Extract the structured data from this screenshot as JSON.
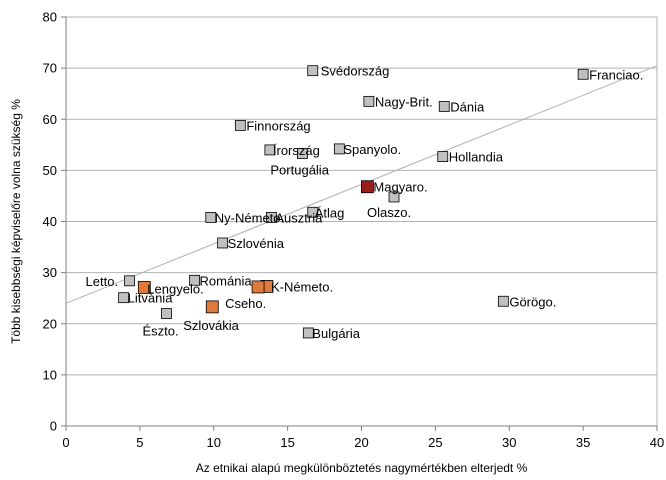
{
  "chart_data": {
    "type": "scatter",
    "xlabel": "Az etnikai alapú megkülönböztetés nagymértékben elterjedt %",
    "ylabel": "Több kisebbségi képviselőre volna szükség %",
    "xlim": [
      0,
      40
    ],
    "ylim": [
      0,
      80
    ],
    "xticks": [
      "0",
      "5",
      "10",
      "15",
      "20",
      "25",
      "30",
      "35",
      "40"
    ],
    "yticks": [
      "0",
      "10",
      "20",
      "30",
      "40",
      "50",
      "60",
      "70",
      "80"
    ],
    "grid": "horizontal",
    "colors": {
      "default": "#c0c0c0",
      "highlight": "#e07a3c",
      "focus": "#9b1c1c",
      "trend": "#b0b0b0"
    },
    "trendline": {
      "x": [
        0,
        40
      ],
      "y": [
        24,
        70.5
      ]
    },
    "points": [
      {
        "label": "Svédország",
        "x": 16.7,
        "y": 69.5,
        "color": "default"
      },
      {
        "label": "Franciao.",
        "x": 35.0,
        "y": 68.8,
        "color": "default"
      },
      {
        "label": "Nagy-Brit.",
        "x": 20.5,
        "y": 63.5,
        "color": "default"
      },
      {
        "label": "Dánia",
        "x": 25.6,
        "y": 62.5,
        "color": "default"
      },
      {
        "label": "Finnország",
        "x": 11.8,
        "y": 58.8,
        "color": "default"
      },
      {
        "label": "Írország",
        "x": 13.8,
        "y": 54.0,
        "color": "default"
      },
      {
        "label": "Spanyolo.",
        "x": 18.5,
        "y": 54.2,
        "color": "default"
      },
      {
        "label": "Portugália",
        "x": 16.0,
        "y": 53.3,
        "color": "default"
      },
      {
        "label": "Hollandia",
        "x": 25.5,
        "y": 52.7,
        "color": "default"
      },
      {
        "label": "Magyaro.",
        "x": 20.4,
        "y": 46.8,
        "color": "focus"
      },
      {
        "label": "Olaszo.",
        "x": 22.2,
        "y": 44.8,
        "color": "default"
      },
      {
        "label": "Átlag",
        "x": 16.7,
        "y": 41.8,
        "color": "default"
      },
      {
        "label": "Ny-Németo.",
        "x": 9.8,
        "y": 40.8,
        "color": "default"
      },
      {
        "label": "Ausztria",
        "x": 13.9,
        "y": 40.8,
        "color": "default"
      },
      {
        "label": "Szlovénia",
        "x": 10.6,
        "y": 35.8,
        "color": "default"
      },
      {
        "label": "Letto.",
        "x": 4.3,
        "y": 28.4,
        "color": "default"
      },
      {
        "label": "Románia",
        "x": 8.7,
        "y": 28.5,
        "color": "default"
      },
      {
        "label": "Lengyelo.",
        "x": 5.3,
        "y": 27.1,
        "color": "highlight"
      },
      {
        "label": "K-Németo.",
        "x": 13.6,
        "y": 27.3,
        "color": "highlight"
      },
      {
        "label": "Cseho.",
        "x": 13.0,
        "y": 27.2,
        "color": "highlight"
      },
      {
        "label": "Litvánia",
        "x": 3.9,
        "y": 25.1,
        "color": "default"
      },
      {
        "label": "Szlovákia",
        "x": 9.9,
        "y": 23.3,
        "color": "highlight"
      },
      {
        "label": "Görögo.",
        "x": 29.6,
        "y": 24.4,
        "color": "default"
      },
      {
        "label": "Észto.",
        "x": 6.8,
        "y": 22.0,
        "color": "default"
      },
      {
        "label": "Bulgária",
        "x": 16.4,
        "y": 18.2,
        "color": "default"
      }
    ]
  }
}
